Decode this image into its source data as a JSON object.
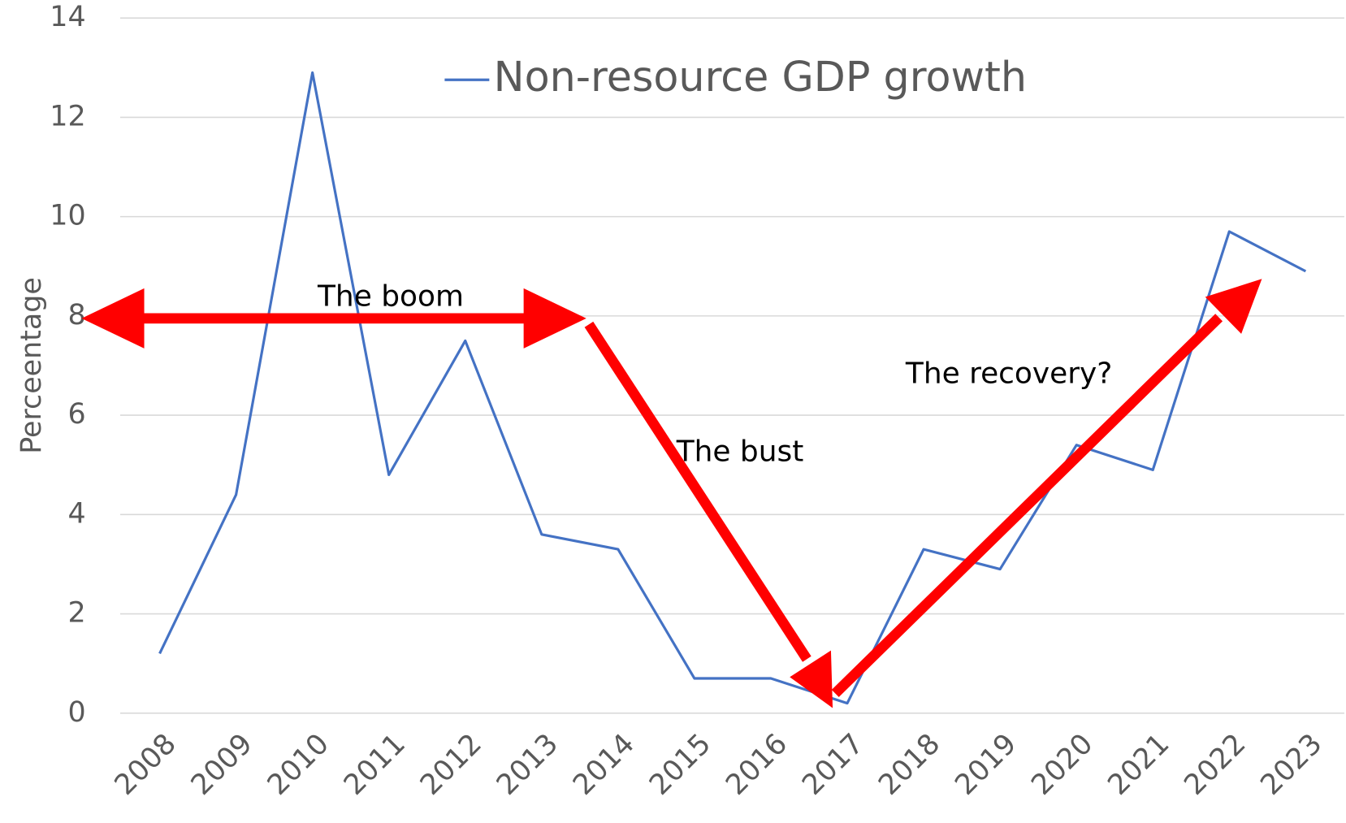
{
  "chart_data": {
    "type": "line",
    "y_label": "Perceentage",
    "categories": [
      "2008",
      "2009",
      "2010",
      "2011",
      "2012",
      "2013",
      "2014",
      "2015",
      "2016",
      "2017",
      "2018",
      "2019",
      "2020",
      "2021",
      "2022",
      "2023"
    ],
    "series": [
      {
        "name": "Non-resource GDP growth",
        "color": "#4472c4",
        "values": [
          1.2,
          4.4,
          12.9,
          4.8,
          7.5,
          3.6,
          3.3,
          0.7,
          0.7,
          0.2,
          3.3,
          2.9,
          5.4,
          4.9,
          9.7,
          8.9
        ]
      }
    ],
    "ylim": [
      0,
      14
    ],
    "yticks": [
      0,
      2,
      4,
      6,
      8,
      10,
      12,
      14
    ],
    "grid": true,
    "legend": "top",
    "annotations": [
      "The boom",
      "The bust",
      "The recovery?"
    ]
  }
}
